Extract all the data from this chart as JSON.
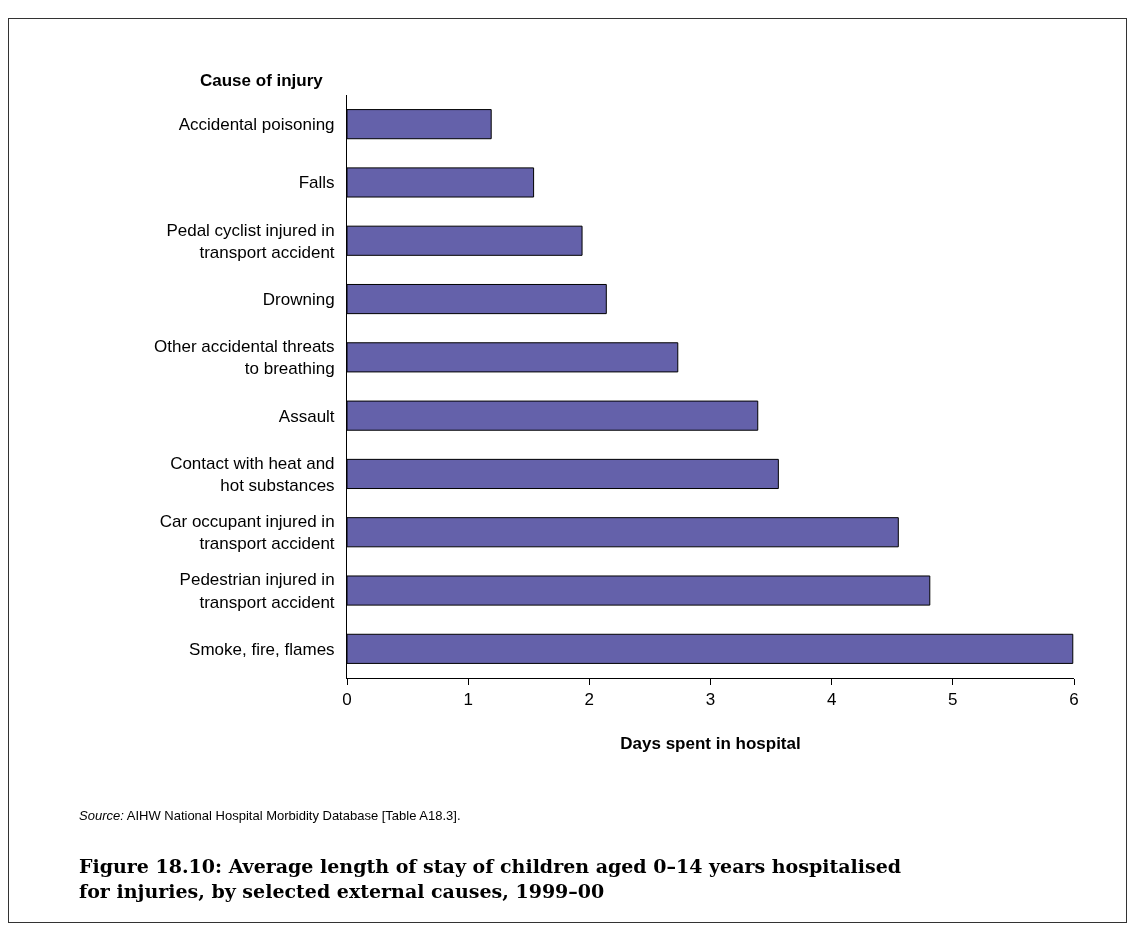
{
  "chart_data": {
    "type": "bar",
    "orientation": "horizontal",
    "title": "Figure 18.10: Average length of stay of children aged 0–14 years hospitalised for injuries, by selected external causes, 1999–00",
    "xlabel": "Days spent in hospital",
    "ylabel": "Cause of injury",
    "categories": [
      "Accidental poisoning",
      "Falls",
      "Pedal cyclist injured in transport accident",
      "Drowning",
      "Other accidental threats to breathing",
      "Assault",
      "Contact with heat and hot substances",
      "Car occupant injured in transport accident",
      "Pedestrian injured in transport accident",
      "Smoke, fire, flames"
    ],
    "values": [
      1.19,
      1.54,
      1.94,
      2.14,
      2.73,
      3.39,
      3.56,
      4.55,
      4.81,
      5.99
    ],
    "color": "#6461aa",
    "xlim": [
      0,
      6
    ],
    "xticks": [
      0,
      1,
      2,
      3,
      4,
      5,
      6
    ],
    "grid": false,
    "annotations": [
      "Source: AIHW National Hospital Morbidity Database [Table A18.3]."
    ]
  }
}
